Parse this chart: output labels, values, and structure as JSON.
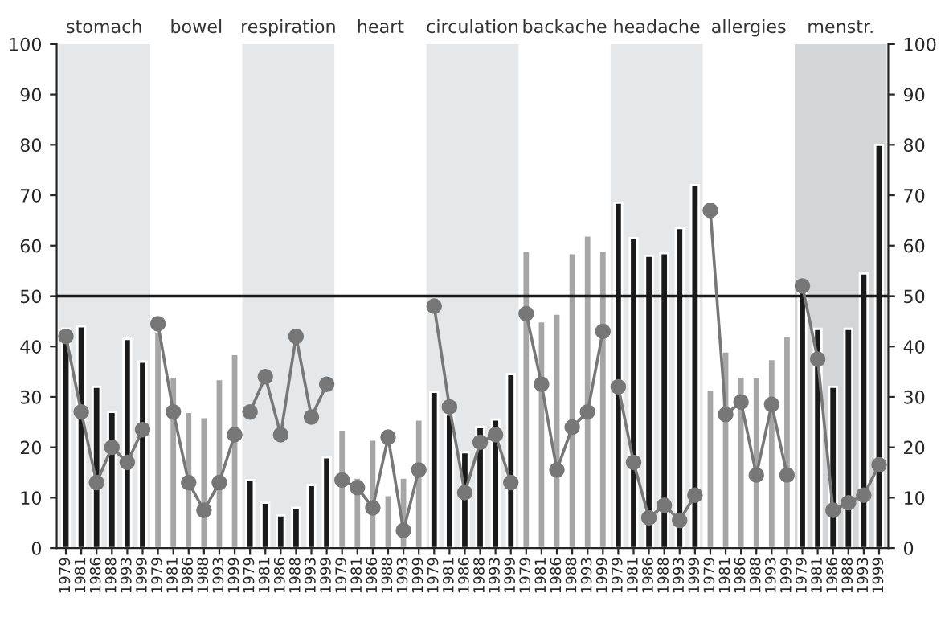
{
  "chart_data": {
    "type": "bar",
    "categories": [
      "1979",
      "1981",
      "1986",
      "1988",
      "1993",
      "1999",
      "1979",
      "1981",
      "1986",
      "1988",
      "1993",
      "1999",
      "1979",
      "1981",
      "1986",
      "1988",
      "1993",
      "1999",
      "1979",
      "1981",
      "1986",
      "1988",
      "1993",
      "1999",
      "1979",
      "1981",
      "1986",
      "1988",
      "1993",
      "1999",
      "1979",
      "1981",
      "1986",
      "1988",
      "1993",
      "1999",
      "1979",
      "1981",
      "1986",
      "1988",
      "1993",
      "1999",
      "1979",
      "1981",
      "1986",
      "1988",
      "1993",
      "1999",
      "1979",
      "1981",
      "1986",
      "1988",
      "1993",
      "1999"
    ],
    "annotations": [
      "stomach",
      "bowel",
      "respiration",
      "heart",
      "circulation",
      "backache",
      "headache",
      "allergies",
      "menstr."
    ],
    "series": [
      {
        "colors": [
          "#1a1a1a",
          "#1a1a1a",
          "#1a1a1a",
          "#1a1a1a",
          "#1a1a1a",
          "#1a1a1a",
          "#a6a6a6",
          "#a6a6a6",
          "#a6a6a6",
          "#a6a6a6",
          "#a6a6a6",
          "#a6a6a6",
          "#1a1a1a",
          "#1a1a1a",
          "#1a1a1a",
          "#1a1a1a",
          "#1a1a1a",
          "#1a1a1a",
          "#a6a6a6",
          "#a6a6a6",
          "#a6a6a6",
          "#a6a6a6",
          "#a6a6a6",
          "#a6a6a6",
          "#1a1a1a",
          "#1a1a1a",
          "#1a1a1a",
          "#1a1a1a",
          "#1a1a1a",
          "#1a1a1a",
          "#a6a6a6",
          "#a6a6a6",
          "#a6a6a6",
          "#a6a6a6",
          "#a6a6a6",
          "#a6a6a6",
          "#1a1a1a",
          "#1a1a1a",
          "#1a1a1a",
          "#1a1a1a",
          "#1a1a1a",
          "#1a1a1a",
          "#a6a6a6",
          "#a6a6a6",
          "#a6a6a6",
          "#a6a6a6",
          "#a6a6a6",
          "#a6a6a6",
          "#1a1a1a",
          "#1a1a1a",
          "#1a1a1a",
          "#1a1a1a",
          "#1a1a1a",
          "#1a1a1a"
        ],
        "values": [
          43.5,
          44,
          32,
          27,
          41.5,
          37,
          43,
          34,
          27,
          26,
          33.5,
          38.5,
          13.5,
          9,
          6.5,
          8,
          12.5,
          18,
          23.5,
          14,
          21.5,
          10.5,
          14,
          25.5,
          31,
          26.5,
          19,
          24,
          25.5,
          34.5,
          59,
          45,
          46.5,
          58.5,
          62,
          59,
          68.5,
          61.5,
          58,
          58.5,
          63.5,
          72,
          31.5,
          39,
          34,
          34,
          37.5,
          42,
          51,
          43.5,
          32,
          43.5,
          54.5,
          80
        ]
      },
      {
        "type": "line",
        "color": "#777777",
        "values": [
          42,
          27,
          13,
          20,
          17,
          23.5,
          null,
          null,
          null,
          null,
          null,
          null,
          null,
          null,
          null,
          null,
          null,
          null,
          null,
          null,
          null,
          null,
          null,
          null,
          null,
          null,
          null,
          null,
          null,
          null,
          null,
          null,
          null,
          null,
          null,
          null,
          null,
          null,
          null,
          null,
          null,
          null,
          null,
          null,
          null,
          null,
          null,
          null,
          null,
          null,
          null,
          null,
          null,
          null
        ]
      },
      {
        "type": "line",
        "color": "#777777",
        "values": [
          null,
          null,
          null,
          null,
          null,
          null,
          44.5,
          27,
          13,
          7.5,
          13,
          22.5,
          null,
          null,
          null,
          null,
          null,
          null,
          null,
          null,
          null,
          null,
          null,
          null,
          null,
          null,
          null,
          null,
          null,
          null,
          null,
          null,
          null,
          null,
          null,
          null,
          null,
          null,
          null,
          null,
          null,
          null,
          null,
          null,
          null,
          null,
          null,
          null,
          null,
          null,
          null,
          null,
          null,
          null
        ]
      },
      {
        "type": "line",
        "color": "#777777",
        "values": [
          null,
          null,
          null,
          null,
          null,
          null,
          null,
          null,
          null,
          null,
          null,
          null,
          27,
          34,
          22.5,
          42,
          26,
          32.5,
          null,
          null,
          null,
          null,
          null,
          null,
          null,
          null,
          null,
          null,
          null,
          null,
          null,
          null,
          null,
          null,
          null,
          null,
          null,
          null,
          null,
          null,
          null,
          null,
          null,
          null,
          null,
          null,
          null,
          null,
          null,
          null,
          null,
          null,
          null,
          null
        ]
      },
      {
        "type": "line",
        "color": "#777777",
        "values": [
          null,
          null,
          null,
          null,
          null,
          null,
          null,
          null,
          null,
          null,
          null,
          null,
          null,
          null,
          null,
          null,
          null,
          null,
          13.5,
          12,
          8,
          22,
          3.5,
          15.5,
          null,
          null,
          null,
          null,
          null,
          null,
          null,
          null,
          null,
          null,
          null,
          null,
          null,
          null,
          null,
          null,
          null,
          null,
          null,
          null,
          null,
          null,
          null,
          null,
          null,
          null,
          null,
          null,
          null,
          null
        ]
      },
      {
        "type": "line",
        "color": "#777777",
        "values": [
          null,
          null,
          null,
          null,
          null,
          null,
          null,
          null,
          null,
          null,
          null,
          null,
          null,
          null,
          null,
          null,
          null,
          null,
          null,
          null,
          null,
          null,
          null,
          null,
          48,
          28,
          11,
          21,
          22.5,
          13,
          null,
          null,
          null,
          null,
          null,
          null,
          null,
          null,
          null,
          null,
          null,
          null,
          null,
          null,
          null,
          null,
          null,
          null,
          null,
          null,
          null,
          null,
          null,
          null
        ]
      },
      {
        "type": "line",
        "color": "#777777",
        "values": [
          null,
          null,
          null,
          null,
          null,
          null,
          null,
          null,
          null,
          null,
          null,
          null,
          null,
          null,
          null,
          null,
          null,
          null,
          null,
          null,
          null,
          null,
          null,
          null,
          null,
          null,
          null,
          null,
          null,
          null,
          46.5,
          32.5,
          15.5,
          24,
          27,
          43,
          null,
          null,
          null,
          null,
          null,
          null,
          null,
          null,
          null,
          null,
          null,
          null,
          null,
          null,
          null,
          null,
          null,
          null
        ]
      },
      {
        "type": "line",
        "color": "#777777",
        "values": [
          null,
          null,
          null,
          null,
          null,
          null,
          null,
          null,
          null,
          null,
          null,
          null,
          null,
          null,
          null,
          null,
          null,
          null,
          null,
          null,
          null,
          null,
          null,
          null,
          null,
          null,
          null,
          null,
          null,
          null,
          null,
          null,
          null,
          null,
          null,
          null,
          32,
          17,
          6,
          8.5,
          5.5,
          10.5,
          null,
          null,
          null,
          null,
          null,
          null,
          null,
          null,
          null,
          null,
          null,
          null
        ]
      },
      {
        "type": "line",
        "color": "#777777",
        "values": [
          null,
          null,
          null,
          null,
          null,
          null,
          null,
          null,
          null,
          null,
          null,
          null,
          null,
          null,
          null,
          null,
          null,
          null,
          null,
          null,
          null,
          null,
          null,
          null,
          null,
          null,
          null,
          null,
          null,
          null,
          null,
          null,
          null,
          null,
          null,
          null,
          null,
          null,
          null,
          null,
          null,
          null,
          67,
          26.5,
          29,
          14.5,
          28.5,
          14.5,
          null,
          null,
          null,
          null,
          null,
          null
        ]
      },
      {
        "type": "line",
        "color": "#777777",
        "values": [
          null,
          null,
          null,
          null,
          null,
          null,
          null,
          null,
          null,
          null,
          null,
          null,
          null,
          null,
          null,
          null,
          null,
          null,
          null,
          null,
          null,
          null,
          null,
          null,
          null,
          null,
          null,
          null,
          null,
          null,
          null,
          null,
          null,
          null,
          null,
          null,
          null,
          null,
          null,
          null,
          null,
          null,
          null,
          null,
          null,
          null,
          null,
          null,
          52,
          37.5,
          7.5,
          9,
          10.5,
          16.5
        ]
      }
    ],
    "ylim": [
      0,
      100
    ],
    "yticks": [
      0,
      10,
      20,
      30,
      40,
      50,
      60,
      70,
      80,
      90,
      100
    ],
    "y2lim": [
      0,
      100
    ],
    "y2ticks": [
      0,
      10,
      20,
      30,
      40,
      50,
      60,
      70,
      80,
      90,
      100
    ],
    "ref_lines": [
      {
        "axis": "y",
        "value": 50,
        "color": "#1a1a1a"
      }
    ],
    "marker": "circle",
    "grid": false,
    "legend": false
  }
}
